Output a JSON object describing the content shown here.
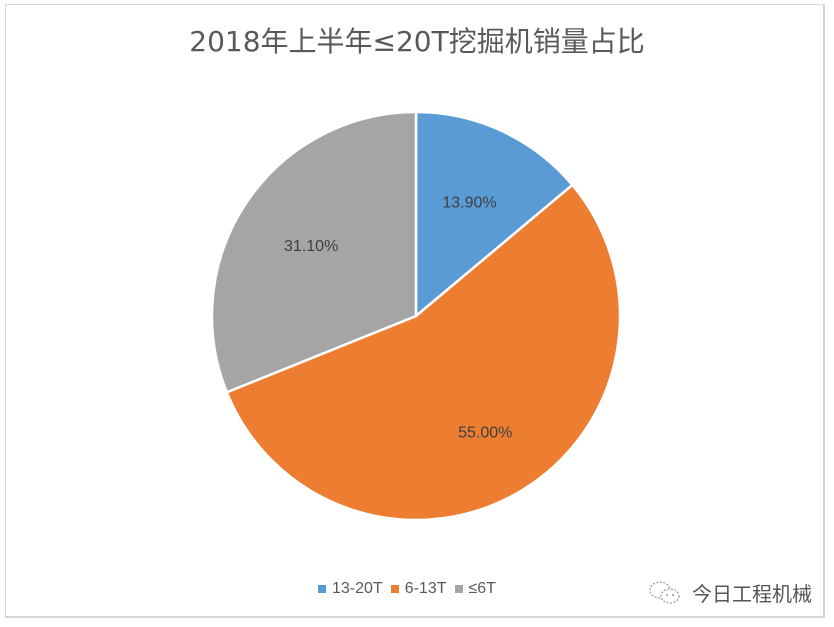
{
  "chart_data": {
    "type": "pie",
    "title": "2018年上半年≤20T挖掘机销量占比",
    "categories": [
      "13-20T",
      "6-13T",
      "≤6T"
    ],
    "values": [
      13.9,
      55.0,
      31.1
    ],
    "labels": [
      "13.90%",
      "55.00%",
      "31.10%"
    ],
    "colors": [
      "#5b9bd5",
      "#ed7d31",
      "#a5a5a5"
    ],
    "legend_position": "bottom",
    "start_angle_deg": 0,
    "direction": "clockwise"
  },
  "legend": {
    "items": [
      {
        "label": "13-20T",
        "color": "#5b9bd5"
      },
      {
        "label": "6-13T",
        "color": "#ed7d31"
      },
      {
        "label": "≤6T",
        "color": "#a5a5a5"
      }
    ]
  },
  "watermark": {
    "icon": "wechat-icon",
    "text": "今日工程机械"
  }
}
